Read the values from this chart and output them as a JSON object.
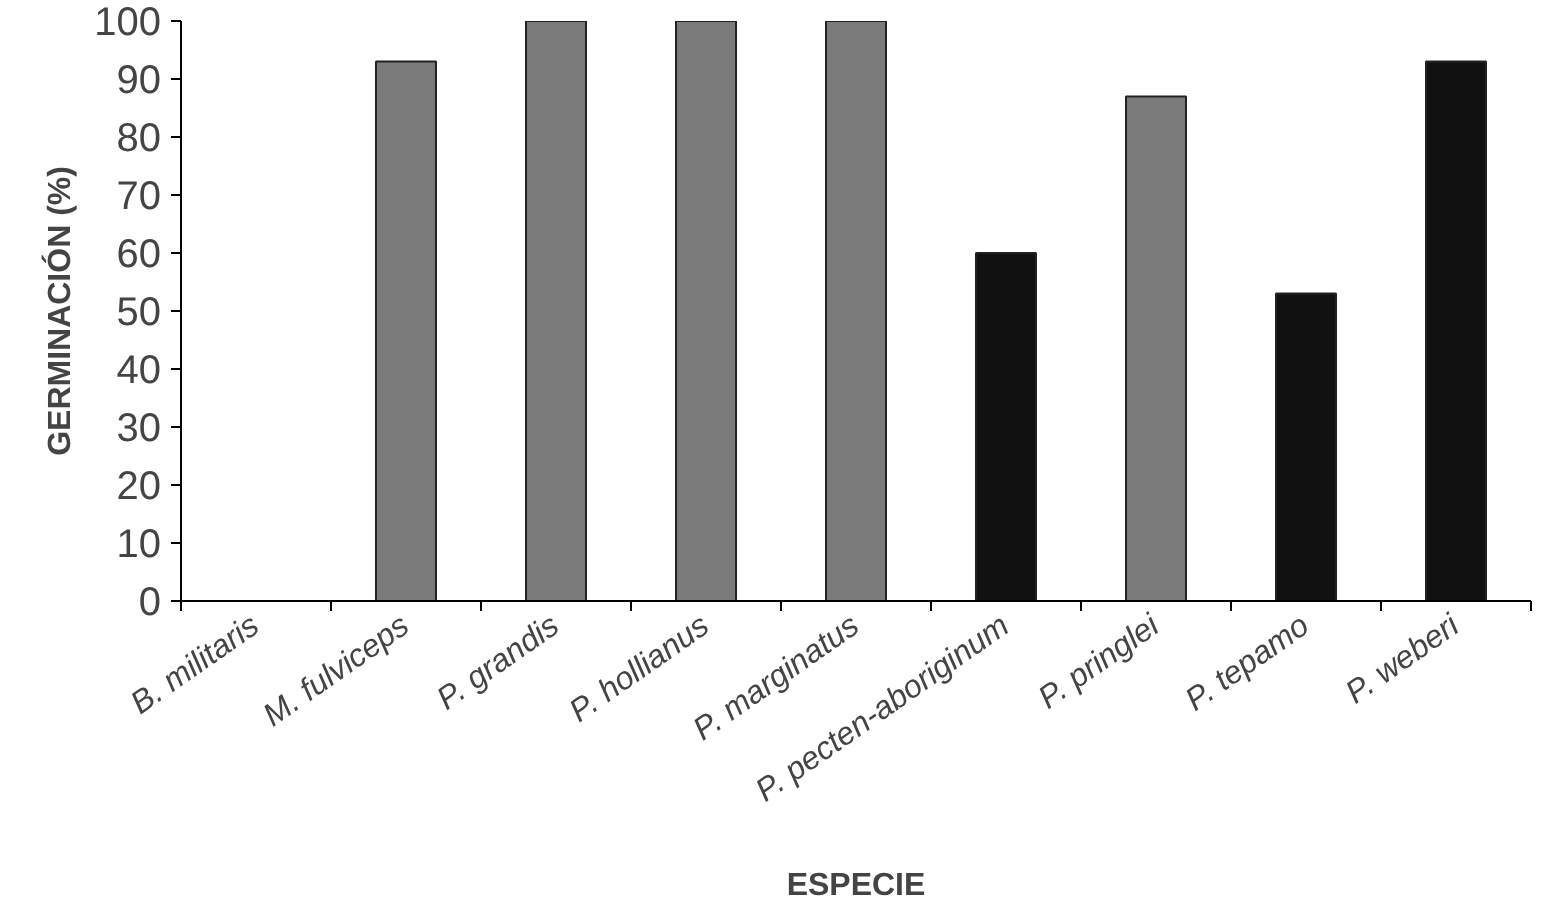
{
  "chart_data": {
    "type": "bar",
    "xlabel": "ESPECIE",
    "ylabel": "GERMINACIÓN (%)",
    "categories": [
      "B. militaris",
      "M. fulviceps",
      "P. grandis",
      "P. hollianus",
      "P. marginatus",
      "P. pecten-aboriginum",
      "P. pringlei",
      "P. tepamo",
      "P. weberi"
    ],
    "values": [
      0,
      93,
      100,
      100,
      100,
      60,
      87,
      53,
      93
    ],
    "colors": [
      "#1a1a1a",
      "#7a7a7a",
      "#7a7a7a",
      "#7a7a7a",
      "#7a7a7a",
      "#111111",
      "#7a7a7a",
      "#111111",
      "#111111"
    ],
    "ylim": [
      0,
      100
    ],
    "yticks": [
      0,
      10,
      20,
      30,
      40,
      50,
      60,
      70,
      80,
      90,
      100
    ],
    "grid": false
  }
}
